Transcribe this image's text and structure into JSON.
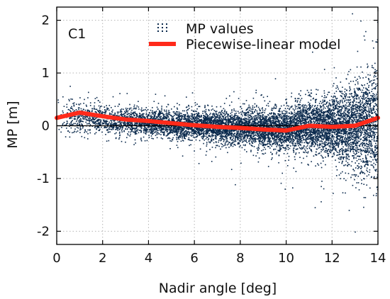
{
  "chart_data": {
    "type": "scatter",
    "panel_label": "C1",
    "xlabel": "Nadir angle [deg]",
    "ylabel": "MP [m]",
    "xlim": [
      0,
      14
    ],
    "ylim": [
      -2.25,
      2.25
    ],
    "x_ticks": [
      0,
      2,
      4,
      6,
      8,
      10,
      12,
      14
    ],
    "y_ticks": [
      -2,
      -1,
      0,
      1,
      2
    ],
    "grid": true,
    "legend_position": "top",
    "series": [
      {
        "name": "MP values",
        "kind": "scatter",
        "color": "#0b2a4d",
        "approx_spread_sd_by_nadir": [
          {
            "x": 0,
            "sd": 0.16
          },
          {
            "x": 2,
            "sd": 0.14
          },
          {
            "x": 4,
            "sd": 0.13
          },
          {
            "x": 6,
            "sd": 0.14
          },
          {
            "x": 8,
            "sd": 0.16
          },
          {
            "x": 10,
            "sd": 0.2
          },
          {
            "x": 12,
            "sd": 0.28
          },
          {
            "x": 13,
            "sd": 0.4
          },
          {
            "x": 14,
            "sd": 0.6
          }
        ],
        "approx_point_count": 9000
      },
      {
        "name": "Piecewise-linear model",
        "kind": "line",
        "color": "#ff2a1a",
        "x": [
          0,
          1,
          2,
          3,
          4,
          5,
          6,
          7,
          8,
          9,
          10,
          11,
          12,
          13,
          14
        ],
        "y": [
          0.15,
          0.25,
          0.18,
          0.12,
          0.09,
          0.05,
          0.01,
          -0.02,
          -0.04,
          -0.07,
          -0.09,
          0.0,
          -0.02,
          0.0,
          0.15
        ]
      }
    ]
  }
}
